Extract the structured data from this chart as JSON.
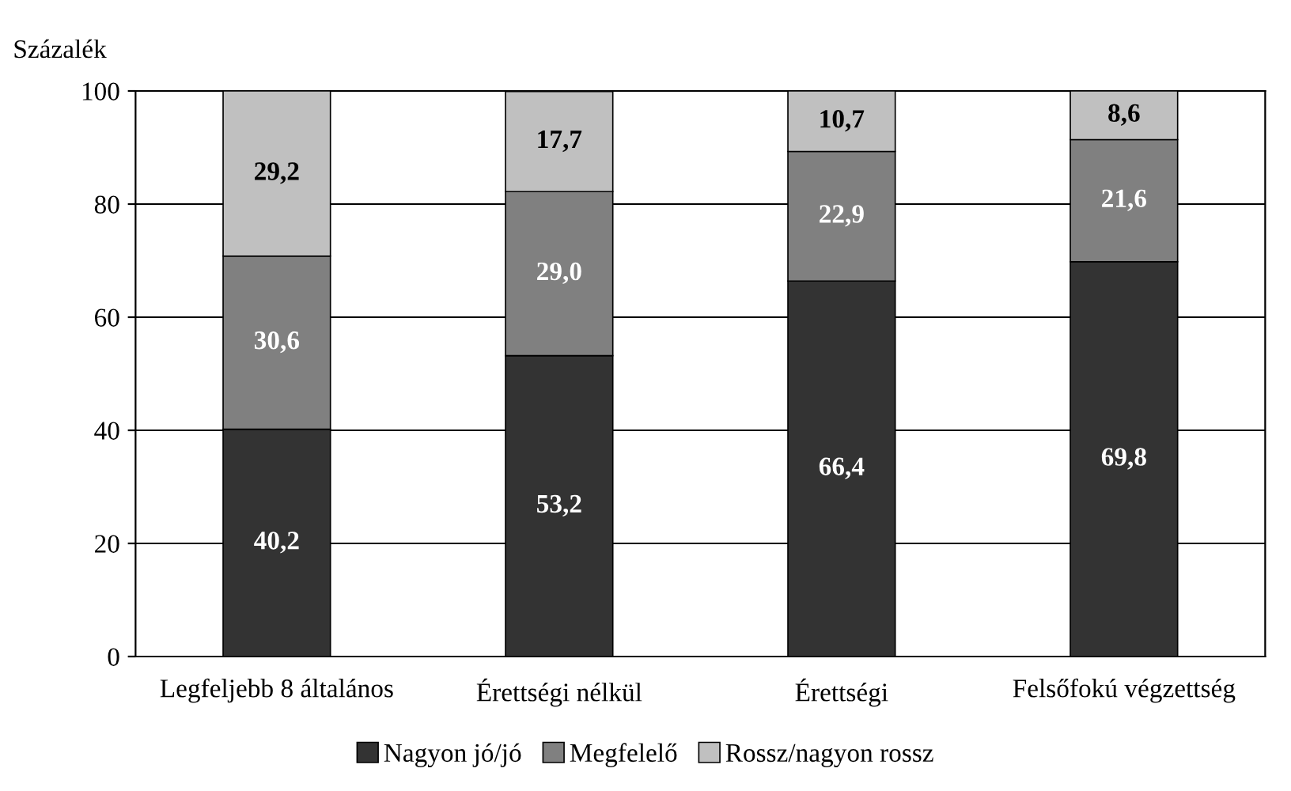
{
  "chart_data": {
    "type": "bar",
    "stacked": true,
    "ylabel": "Százalék",
    "categories": [
      "Legfeljebb 8 általános",
      "Érettségi nélkül",
      "Érettségi",
      "Felsőfokú végzettség"
    ],
    "series": [
      {
        "name": "Nagyon jó/jó",
        "color": "#333333",
        "values": [
          40.2,
          53.2,
          66.4,
          69.8
        ],
        "value_labels": [
          "40,2",
          "53,2",
          "66,4",
          "69,8"
        ]
      },
      {
        "name": "Megfelelő",
        "color": "#808080",
        "values": [
          30.6,
          29.0,
          22.9,
          21.6
        ],
        "value_labels": [
          "30,6",
          "29,0",
          "22,9",
          "21,6"
        ]
      },
      {
        "name": "Rossz/nagyon rossz",
        "color": "#c0c0c0",
        "values": [
          29.2,
          17.7,
          10.7,
          8.6
        ],
        "value_labels": [
          "29,2",
          "17,7",
          "10,7",
          "8,6"
        ]
      }
    ],
    "ylim": [
      0,
      100
    ],
    "yticks": [
      0,
      20,
      40,
      60,
      80,
      100
    ],
    "grid": "y",
    "legend": "bottom"
  }
}
